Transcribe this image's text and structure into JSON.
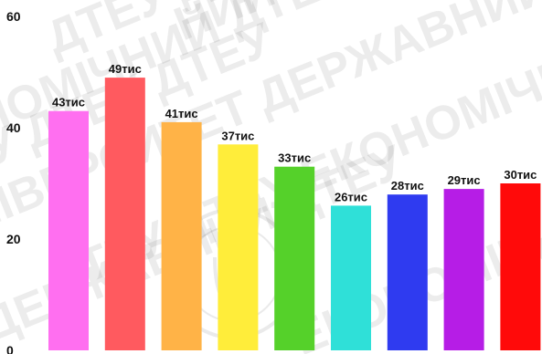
{
  "watermark": {
    "lines": [
      "ДТЕУ ДТЕУ",
      "НИЙ УНІВЕ",
      "НОМІЧНИЙ ДТЕУ ДЕРЖАВНИЙ",
      "ЕУ ДТЕУ ДТЕУ",
      "НІВЕРСИТЕТ ДЕРЖАВНИЙ",
      "ДТЕУ ДТЕУ ЕКОНОМІЧНИЙ",
      "ДЕРЖАВНИЙ ДТЕУ",
      "ЕКОНОМІЧНИЙ"
    ],
    "emblem": "trident-seal-icon"
  },
  "chart_data": {
    "type": "bar",
    "categories": [
      "",
      "",
      "",
      "",
      "",
      "",
      "",
      "",
      ""
    ],
    "values": [
      43,
      49,
      41,
      37,
      33,
      26,
      28,
      29,
      30
    ],
    "data_labels": [
      "43тис",
      "49тис",
      "41тис",
      "37тис",
      "33тис",
      "26тис",
      "28тис",
      "29тис",
      "30тис"
    ],
    "colors": [
      "#ff6ff0",
      "#ff5a5f",
      "#ffb347",
      "#ffed3a",
      "#55d12a",
      "#2fe0d8",
      "#2f3bf0",
      "#b61de6",
      "#ff0a0a"
    ],
    "y_ticks": [
      "0",
      "20",
      "40",
      "60"
    ],
    "ylim": [
      0,
      60
    ],
    "grid": false,
    "legend": "none",
    "title": "",
    "xlabel": "",
    "ylabel": ""
  }
}
